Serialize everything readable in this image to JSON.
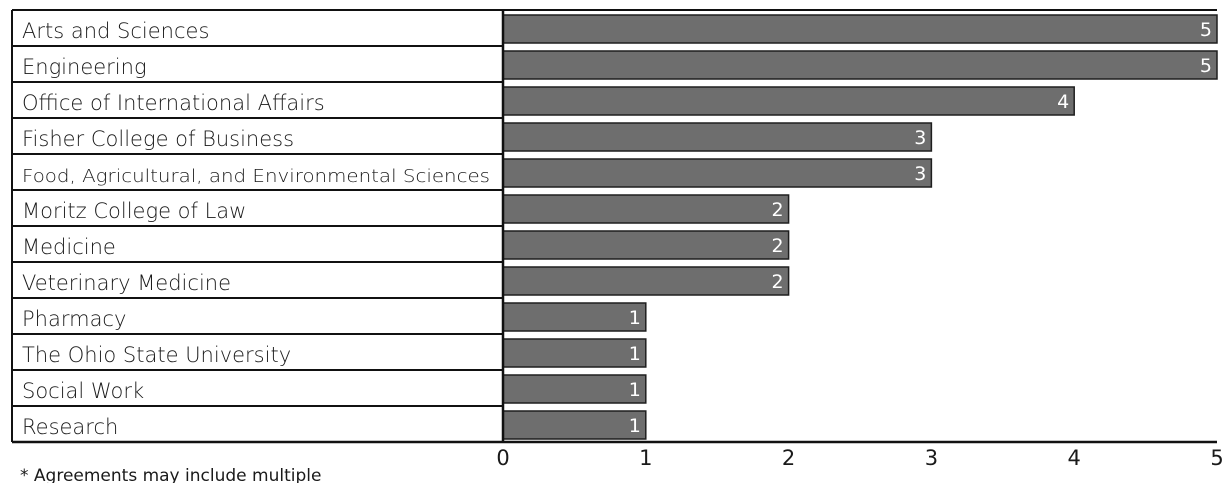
{
  "chart_data": {
    "type": "bar",
    "orientation": "horizontal",
    "categories": [
      "Arts and Sciences",
      "Engineering",
      "Office of International Affairs",
      "Fisher College of Business",
      "Food, Agricultural, and Environmental Sciences",
      "Moritz College of Law",
      "Medicine",
      "Veterinary Medicine",
      "Pharmacy",
      "The Ohio State University",
      "Social Work",
      "Research"
    ],
    "values": [
      5,
      5,
      4,
      3,
      3,
      2,
      2,
      2,
      1,
      1,
      1,
      1
    ],
    "xlim": [
      0,
      5
    ],
    "xticks": [
      "0",
      "1",
      "2",
      "3",
      "4",
      "5"
    ],
    "data_labels": true,
    "grid": false,
    "bar_color": "#6e6e6e",
    "bar_edge_color": "#1e1e1e",
    "label_color": "#ffffff"
  },
  "footnote": "* Agreements may include multiple"
}
